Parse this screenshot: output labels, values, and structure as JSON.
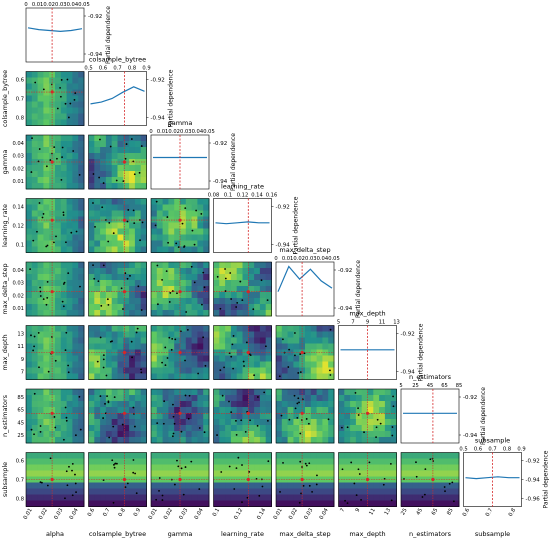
{
  "chart_data": {
    "type": "heatmap",
    "description_kind": "partial dependence matrix (skopt plot_objective)",
    "dims": [
      {
        "name": "alpha",
        "ticks": [
          "0.01",
          "0.02",
          "0.03",
          "0.04"
        ],
        "top_ticks": [
          "0",
          "0.01",
          "0.02",
          "0.03",
          "0.04",
          "0.05"
        ]
      },
      {
        "name": "colsample_bytree",
        "ticks": [
          "0.6",
          "0.7",
          "0.8",
          "0.9"
        ],
        "top_ticks": [
          "0.5",
          "0.6",
          "0.7",
          "0.8",
          "0.9"
        ],
        "left_ticks": [
          "0.6",
          "0.7",
          "0.8"
        ]
      },
      {
        "name": "gamma",
        "ticks": [
          "0.01",
          "0.02",
          "0.03",
          "0.04"
        ],
        "top_ticks": [
          "0",
          "0.01",
          "0.02",
          "0.03",
          "0.04",
          "0.05"
        ],
        "left_ticks": [
          "0.04",
          "0.03",
          "0.02",
          "0.01"
        ]
      },
      {
        "name": "learning_rate",
        "ticks": [
          "0.1",
          "0.12",
          "0.14"
        ],
        "top_ticks": [
          "0.08",
          "0.1",
          "0.12",
          "0.14",
          "0.16"
        ],
        "left_ticks": [
          "0.14",
          "0.12",
          "0.1"
        ]
      },
      {
        "name": "max_delta_step",
        "ticks": [
          "0.01",
          "0.02",
          "0.03",
          "0.04"
        ],
        "top_ticks": [
          "0",
          "0.01",
          "0.02",
          "0.03",
          "0.04",
          "0.05"
        ],
        "left_ticks": [
          "0.04",
          "0.03",
          "0.02",
          "0.01"
        ]
      },
      {
        "name": "max_depth",
        "ticks": [
          "7",
          "9",
          "11",
          "13"
        ],
        "top_ticks": [
          "5",
          "7",
          "9",
          "11",
          "13"
        ],
        "left_ticks": [
          "13",
          "11",
          "9",
          "7"
        ]
      },
      {
        "name": "n_estimators",
        "ticks": [
          "25",
          "45",
          "65",
          "85"
        ],
        "top_ticks": [
          "5",
          "25",
          "45",
          "65",
          "85"
        ],
        "left_ticks": [
          "85",
          "65",
          "45",
          "25"
        ]
      },
      {
        "name": "subsample",
        "ticks": [
          "0.6",
          "0.7",
          "0.8"
        ],
        "top_ticks": [
          "0.5",
          "0.6",
          "0.7",
          "0.8",
          "0.9"
        ],
        "left_ticks": [
          "0.6",
          "0.7",
          "0.8"
        ]
      }
    ],
    "partial_dependence_label": "Partial dependence",
    "pd_yticks": [
      "-0.92",
      "-0.94"
    ],
    "pd_yticks_last": [
      "-0.92",
      "-0.94",
      "-0.96"
    ],
    "diagonal_pd_values": [
      [
        -0.917,
        -0.919,
        -0.92,
        -0.921,
        -0.92,
        -0.918
      ],
      [
        -0.931,
        -0.929,
        -0.925,
        -0.918,
        -0.912,
        -0.917
      ],
      [
        -0.92,
        -0.92,
        -0.92,
        -0.92,
        -0.92,
        -0.92
      ],
      [
        -0.922,
        -0.923,
        -0.922,
        -0.921,
        -0.922,
        -0.922
      ],
      [
        -0.928,
        -0.9,
        -0.914,
        -0.903,
        -0.916,
        -0.924
      ],
      [
        -0.922,
        -0.922,
        -0.922,
        -0.922,
        -0.922,
        -0.922
      ],
      [
        -0.922,
        -0.922,
        -0.922,
        -0.922,
        -0.922,
        -0.922
      ],
      [
        -0.923,
        -0.924,
        -0.923,
        -0.922,
        -0.923,
        -0.923
      ]
    ],
    "best_point_fraction": [
      0.45,
      0.62,
      0.5,
      0.6,
      0.45,
      0.5,
      0.55,
      0.5
    ],
    "colormap": [
      "#440154",
      "#3b528b",
      "#21918c",
      "#5ec962",
      "#fde725"
    ]
  }
}
